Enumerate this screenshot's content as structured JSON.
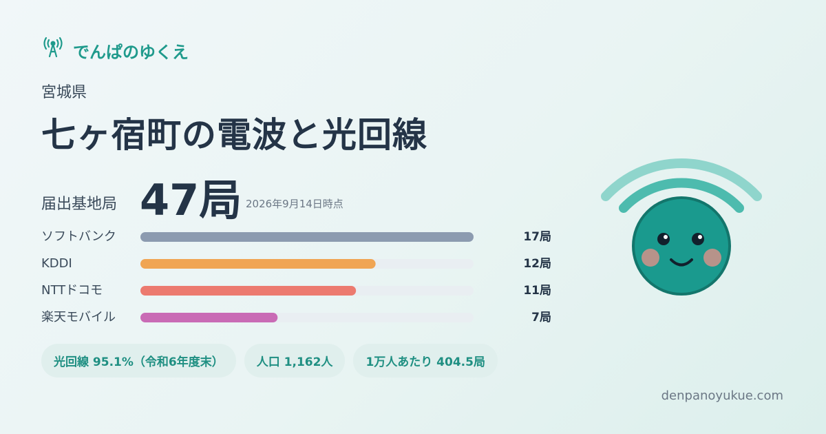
{
  "header": {
    "brand": "でんぱのゆくえ",
    "prefecture": "宮城県",
    "title": "七ヶ宿町の電波と光回線"
  },
  "summary": {
    "label": "届出基地局",
    "total": "47局",
    "date": "2026年9月14日時点"
  },
  "carriers": {
    "type": "bar",
    "track_color": "#e9eef2",
    "categories": [
      "ソフトバンク",
      "KDDI",
      "NTTドコモ",
      "楽天モバイル"
    ],
    "values": [
      17,
      12,
      11,
      7
    ],
    "value_labels": [
      "17局",
      "12局",
      "11局",
      "7局"
    ],
    "colors": [
      "#8c9bb0",
      "#f0a554",
      "#ec7a6f",
      "#c96bb5"
    ]
  },
  "stats": [
    "光回線 95.1%（令和6年度末）",
    "人口 1,162人",
    "1万人あたり 404.5局"
  ],
  "footer": {
    "url": "denpanoyukue.com"
  }
}
